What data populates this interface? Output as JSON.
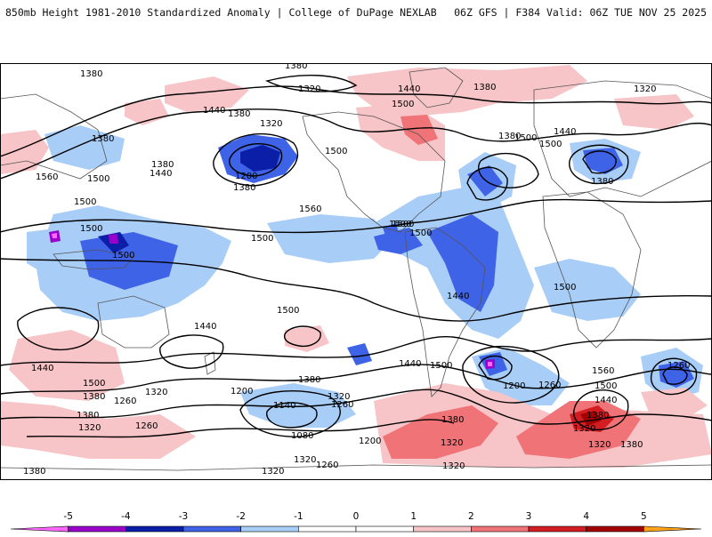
{
  "header": {
    "title": "850mb Height 1981-2010 Standardized Anomaly | College of DuPage NEXLAB",
    "run_info": "06Z GFS | F384 Valid: 06Z TUE NOV 25 2025"
  },
  "map": {
    "projection": "global cylindrical",
    "contour_labels": [
      {
        "name": "contour-1380-npac",
        "text": "1380"
      },
      {
        "name": "contour-1380-arctic",
        "text": "1380"
      },
      {
        "name": "contour-1320-arctic",
        "text": "1320"
      },
      {
        "name": "contour-1440-hudson",
        "text": "1440"
      },
      {
        "name": "contour-1380-greenland",
        "text": "1380"
      },
      {
        "name": "contour-1500-canada",
        "text": "1500"
      },
      {
        "name": "contour-1320-scand",
        "text": "1320"
      },
      {
        "name": "contour-1440-bering",
        "text": "1440"
      },
      {
        "name": "contour-1380-bering",
        "text": "1380"
      },
      {
        "name": "contour-1320-aleut",
        "text": "1320"
      },
      {
        "name": "contour-1380-siberia",
        "text": "1380"
      },
      {
        "name": "contour-1380-japan",
        "text": "1380"
      },
      {
        "name": "contour-1440-japan",
        "text": "1440"
      },
      {
        "name": "contour-1500-japan",
        "text": "1500"
      },
      {
        "name": "contour-1560-china",
        "text": "1560"
      },
      {
        "name": "contour-1500-china",
        "text": "1500"
      },
      {
        "name": "contour-1200-gulfak",
        "text": "1200"
      },
      {
        "name": "contour-1380-gulfak",
        "text": "1380"
      },
      {
        "name": "contour-1500-pacnw",
        "text": "1500"
      },
      {
        "name": "contour-1560-pac",
        "text": "1560"
      },
      {
        "name": "contour-1380-natl",
        "text": "1380"
      },
      {
        "name": "contour-1500-natl",
        "text": "1500"
      },
      {
        "name": "contour-1440-europe",
        "text": "1440"
      },
      {
        "name": "contour-1380-europe",
        "text": "1380"
      },
      {
        "name": "contour-1500-gulf",
        "text": "1500"
      },
      {
        "name": "contour-1500-carib",
        "text": "1500"
      },
      {
        "name": "contour-1500-eqpac",
        "text": "1500"
      },
      {
        "name": "contour-1500-wpac",
        "text": "1500"
      },
      {
        "name": "contour-1500-indo",
        "text": "1500"
      },
      {
        "name": "contour-1500-satl",
        "text": "1500"
      },
      {
        "name": "contour-1440-amazon",
        "text": "1440"
      },
      {
        "name": "contour-1500-spac",
        "text": "1500"
      },
      {
        "name": "contour-1440-aus",
        "text": "1440"
      },
      {
        "name": "contour-1440-sio",
        "text": "1440"
      },
      {
        "name": "contour-1500-sio",
        "text": "1500"
      },
      {
        "name": "contour-1380-sio",
        "text": "1380"
      },
      {
        "name": "contour-1320-sio",
        "text": "1320"
      },
      {
        "name": "contour-1260-sio",
        "text": "1260"
      },
      {
        "name": "contour-1320-so1",
        "text": "1320"
      },
      {
        "name": "contour-1260-so1",
        "text": "1260"
      },
      {
        "name": "contour-1380-so-left",
        "text": "1380"
      },
      {
        "name": "contour-1320-tasman",
        "text": "1320"
      },
      {
        "name": "contour-1200-spac",
        "text": "1200"
      },
      {
        "name": "contour-1140-spac",
        "text": "1140"
      },
      {
        "name": "contour-1080-spac",
        "text": "1080"
      },
      {
        "name": "contour-1200-spac2",
        "text": "1200"
      },
      {
        "name": "contour-1320-spac",
        "text": "1320"
      },
      {
        "name": "contour-1260-spac",
        "text": "1260"
      },
      {
        "name": "contour-1380-spac",
        "text": "1380"
      },
      {
        "name": "contour-1320-spac2",
        "text": "1320"
      },
      {
        "name": "contour-1260-spac2",
        "text": "1260"
      },
      {
        "name": "contour-1440-chile",
        "text": "1440"
      },
      {
        "name": "contour-1500-chile",
        "text": "1500"
      },
      {
        "name": "contour-1200-drake",
        "text": "1200"
      },
      {
        "name": "contour-1260-drake",
        "text": "1260"
      },
      {
        "name": "contour-1380-weddell",
        "text": "1380"
      },
      {
        "name": "contour-1320-weddell",
        "text": "1320"
      },
      {
        "name": "contour-1320-antarc",
        "text": "1320"
      },
      {
        "name": "contour-1560-safr",
        "text": "1560"
      },
      {
        "name": "contour-1500-safr",
        "text": "1500"
      },
      {
        "name": "contour-1440-safr",
        "text": "1440"
      },
      {
        "name": "contour-1380-safr",
        "text": "1380"
      },
      {
        "name": "contour-1320-safr",
        "text": "1320"
      },
      {
        "name": "contour-1260-sind",
        "text": "1260"
      },
      {
        "name": "contour-1320-sind",
        "text": "1320"
      },
      {
        "name": "contour-1380-sind",
        "text": "1380"
      },
      {
        "name": "contour-1500-atl-eq",
        "text": "1500"
      },
      {
        "name": "contour-1500-afr",
        "text": "1500"
      },
      {
        "name": "contour-1380-bottom-left",
        "text": "1380"
      }
    ]
  },
  "colorbar": {
    "ticks": [
      "-5",
      "-4",
      "-3",
      "-2",
      "-1",
      "0",
      "1",
      "2",
      "3",
      "4",
      "5"
    ],
    "range": [
      -6,
      6
    ],
    "colors": [
      {
        "from": -6,
        "to": -5,
        "color": "#ff66ff"
      },
      {
        "from": -5,
        "to": -4,
        "color": "#9900cc"
      },
      {
        "from": -4,
        "to": -3,
        "color": "#0a1ea8"
      },
      {
        "from": -3,
        "to": -2,
        "color": "#3f63e6"
      },
      {
        "from": -2,
        "to": -1,
        "color": "#a8cdf6"
      },
      {
        "from": -1,
        "to": 0,
        "color": "#ffffff"
      },
      {
        "from": 0,
        "to": 1,
        "color": "#ffffff"
      },
      {
        "from": 1,
        "to": 2,
        "color": "#f7c4c7"
      },
      {
        "from": 2,
        "to": 3,
        "color": "#ef7377"
      },
      {
        "from": 3,
        "to": 4,
        "color": "#d21e22"
      },
      {
        "from": 4,
        "to": 5,
        "color": "#a30000"
      },
      {
        "from": 5,
        "to": 6,
        "color": "#ffa31a"
      }
    ]
  }
}
